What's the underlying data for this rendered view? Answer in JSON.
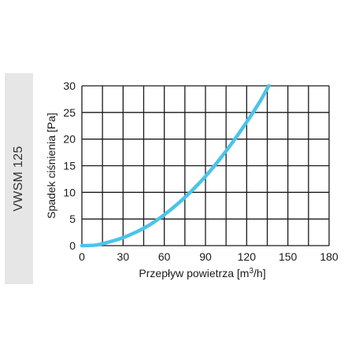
{
  "side_label": "VWSM 125",
  "chart_data": {
    "type": "line",
    "title": "",
    "xlabel_prefix": "Przepływ powietrza [m",
    "xlabel_sup": "3",
    "xlabel_suffix": "/h]",
    "ylabel": "Spadek ciśnienia [Pa]",
    "xlim": [
      0,
      180
    ],
    "ylim": [
      0,
      30
    ],
    "x_ticks": [
      0,
      30,
      60,
      90,
      120,
      150,
      180
    ],
    "y_ticks": [
      0,
      5,
      10,
      15,
      20,
      25,
      30
    ],
    "x_grid_step": 15,
    "grid": true,
    "series": [
      {
        "color": "#4cc3ea",
        "x": [
          0,
          10,
          20,
          30,
          40,
          50,
          60,
          70,
          80,
          90,
          100,
          110,
          120,
          130,
          136
        ],
        "y": [
          0,
          0.1,
          0.7,
          1.5,
          2.6,
          4.0,
          5.8,
          7.9,
          10.3,
          13.0,
          16.1,
          19.5,
          23.2,
          27.2,
          30
        ]
      }
    ]
  }
}
